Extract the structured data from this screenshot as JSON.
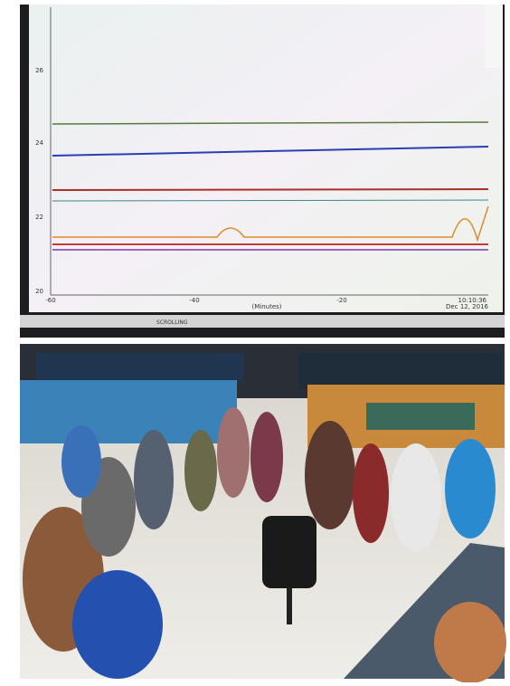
{
  "screen": {
    "y_labels": [
      "26",
      "24",
      "22",
      "20"
    ],
    "x_labels": [
      "-60",
      "-40",
      "-20"
    ],
    "x_axis_label": "(Minutes)",
    "time": "10:10:36",
    "date": "Dec 12, 2016",
    "toolbar_label": "SCROLLING"
  }
}
